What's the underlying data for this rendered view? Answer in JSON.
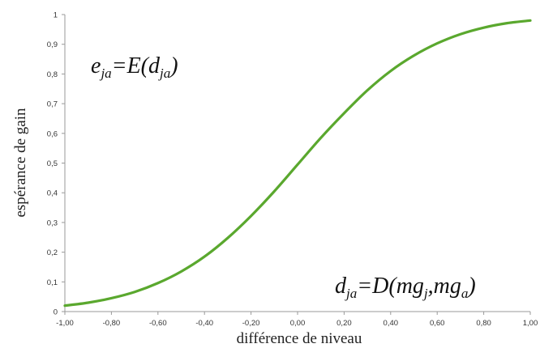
{
  "chart_data": {
    "type": "line",
    "xlabel": "différence de niveau",
    "ylabel": "espérance de gain",
    "xlim": [
      -1,
      1
    ],
    "ylim": [
      0,
      1
    ],
    "x_ticks": [
      -1,
      -0.8,
      -0.6,
      -0.4,
      -0.2,
      0,
      0.2,
      0.4,
      0.6,
      0.8,
      1
    ],
    "x_tick_labels": [
      "-1,00",
      "-0,80",
      "-0,60",
      "-0,40",
      "-0,20",
      "0,00",
      "0,20",
      "0,40",
      "0,60",
      "0,80",
      "1,00"
    ],
    "y_ticks": [
      0,
      0.1,
      0.2,
      0.3,
      0.4,
      0.5,
      0.6,
      0.7,
      0.8,
      0.9,
      1
    ],
    "y_tick_labels": [
      "0",
      "0,1",
      "0,2",
      "0,3",
      "0,4",
      "0,5",
      "0,6",
      "0,7",
      "0,8",
      "0,9",
      "1"
    ],
    "grid": false,
    "series": [
      {
        "color": "#5aa82e",
        "x": [
          -1,
          -0.9,
          -0.8,
          -0.7,
          -0.6,
          -0.5,
          -0.4,
          -0.3,
          -0.2,
          -0.1,
          0,
          0.1,
          0.2,
          0.3,
          0.4,
          0.5,
          0.6,
          0.7,
          0.8,
          0.9,
          1
        ],
        "y": [
          0.02,
          0.03,
          0.045,
          0.066,
          0.096,
          0.135,
          0.185,
          0.248,
          0.322,
          0.405,
          0.495,
          0.585,
          0.668,
          0.745,
          0.81,
          0.862,
          0.903,
          0.934,
          0.956,
          0.971,
          0.98
        ]
      }
    ],
    "annotations": {
      "top_formula": {
        "e": "e",
        "e_sub": "ja",
        "eq": "=E(",
        "d": "d",
        "d_sub": "ja",
        "close": ")"
      },
      "bottom_formula": {
        "d": "d",
        "d_sub": "ja",
        "eq": "=D(",
        "mg1": "mg",
        "sub1": "j",
        "comma": ",",
        "mg2": "mg",
        "sub2": "a",
        "close": ")"
      }
    }
  }
}
